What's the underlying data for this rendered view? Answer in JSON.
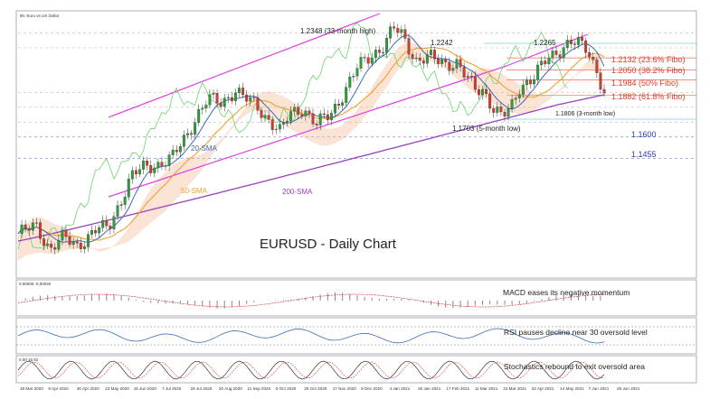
{
  "header": {
    "instrument_label": "8h: Euro vs US Dollar"
  },
  "chart_data": {
    "type": "line",
    "title": "EURUSD - Daily Chart",
    "x_ticks": [
      "18 Mar 2020",
      "9 Apr 2020",
      "30 Apr 2020",
      "22 May 2020",
      "15 Jun 2020",
      "7 Jul 2020",
      "29 Jul 2020",
      "20 Aug 2020",
      "11 Sep 2020",
      "5 Oct 2020",
      "26 Oct 2020",
      "17 Nov 2020",
      "9 Dec 2020",
      "4 Jan 2021",
      "26 Jan 2021",
      "17 Feb 2021",
      "11 Mar 2021",
      "31 Mar 2021",
      "22 Apr 2021",
      "14 May 2021",
      "7 Jun 2021",
      "29 Jun 2021"
    ],
    "price_levels": [
      {
        "label": "1.2132 (23.6% Fibo)",
        "value": 1.2132,
        "color": "#e03c2c"
      },
      {
        "label": "1.2050 (38.2% Fibo)",
        "value": 1.205,
        "color": "#e03c2c"
      },
      {
        "label": "1.1984 (50% Fibo)",
        "value": 1.1984,
        "color": "#e03c2c"
      },
      {
        "label": "1.1882 (61.8% Fibo)",
        "value": 1.1882,
        "color": "#e03c2c"
      },
      {
        "label": "1.1600",
        "value": 1.16,
        "color": "#2a3ea8"
      },
      {
        "label": "1.1455",
        "value": 1.1455,
        "color": "#2a3ea8"
      }
    ],
    "annotations": [
      {
        "text": "1.2348 (33-month high)",
        "value": 1.2348
      },
      {
        "text": "1.2242",
        "value": 1.2242
      },
      {
        "text": "1.2265",
        "value": 1.2265
      },
      {
        "text": "1.1703 (5-month low)",
        "value": 1.1703
      },
      {
        "text": "1.1806 (3-month low)",
        "value": 1.1806
      }
    ],
    "indicator_labels": [
      {
        "text": "20-SMA",
        "color": "#3b6bb5"
      },
      {
        "text": "50-SMA",
        "color": "#f0a030"
      },
      {
        "text": "200-SMA",
        "color": "#9b3fbf"
      }
    ],
    "series": [
      {
        "name": "20-SMA",
        "color": "#3b6bb5"
      },
      {
        "name": "50-SMA",
        "color": "#f0a030"
      },
      {
        "name": "200-SMA",
        "color": "#9b3fbf"
      }
    ],
    "colors": {
      "channel": "#e040e0",
      "chikou": "#6ad36a",
      "cloud": "#f4b48a",
      "candle_up": "#2e9e3a",
      "candle_down": "#d63a2a"
    },
    "panels": [
      {
        "name": "MACD",
        "header": "0.00000 -0.00040",
        "caption": "MACD eases its negative momentum"
      },
      {
        "name": "RSI",
        "caption": "RSI pauses decline near 30 oversold level"
      },
      {
        "name": "Stochastics",
        "header": "0.00 16.92",
        "caption": "Stochastics rebound to exit oversold area"
      }
    ]
  }
}
